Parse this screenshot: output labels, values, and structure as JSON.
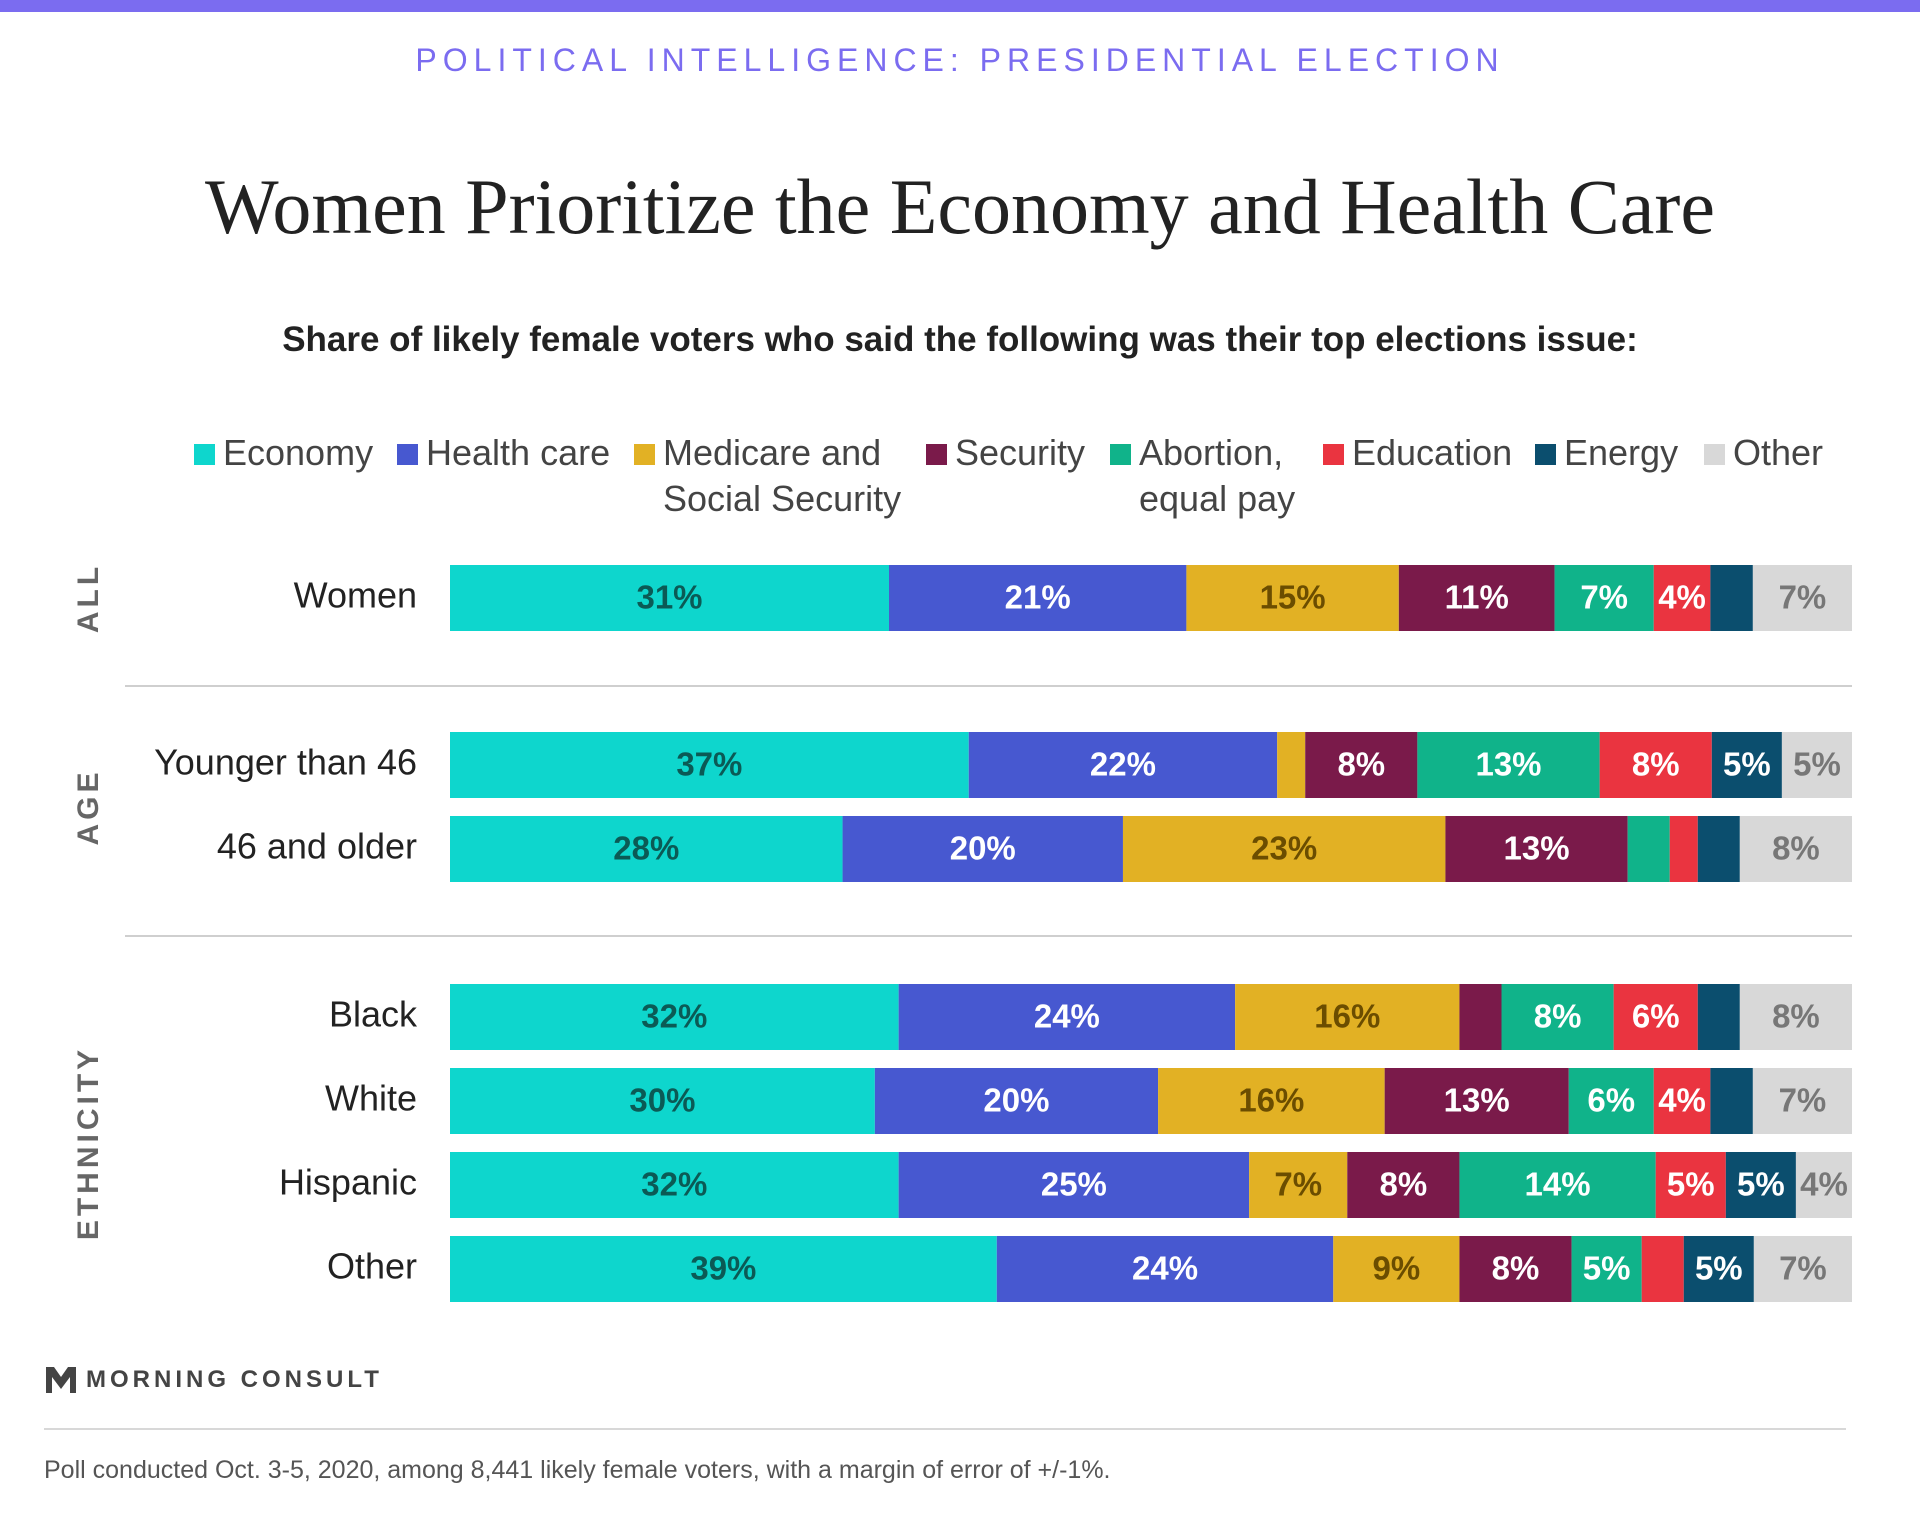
{
  "header": {
    "kicker": "POLITICAL INTELLIGENCE: PRESIDENTIAL ELECTION",
    "title": "Women Prioritize the Economy and Health Care",
    "subtitle": "Share of likely female voters who said the following was their top elections issue:"
  },
  "legend": [
    {
      "label": "Economy",
      "color": "#0ed6cd"
    },
    {
      "label": "Health care",
      "color": "#4758d0"
    },
    {
      "label": "Medicare and Social Security",
      "color": "#e2b124"
    },
    {
      "label": "Security",
      "color": "#7a1a4a"
    },
    {
      "label": "Abortion, equal pay",
      "color": "#10b38a"
    },
    {
      "label": "Education",
      "color": "#ea3440"
    },
    {
      "label": "Energy",
      "color": "#0b4e6e"
    },
    {
      "label": "Other",
      "color": "#d8d8d8"
    }
  ],
  "chart_data": {
    "type": "bar",
    "stacked": true,
    "orientation": "horizontal",
    "series_names": [
      "Economy",
      "Health care",
      "Medicare and Social Security",
      "Security",
      "Abortion, equal pay",
      "Education",
      "Energy",
      "Other"
    ],
    "groups": [
      {
        "name": "ALL",
        "rows": [
          {
            "label": "Women",
            "values": [
              31,
              21,
              15,
              11,
              7,
              4,
              3,
              7
            ],
            "labels": [
              "31%",
              "21%",
              "15%",
              "11%",
              "7%",
              "4%",
              "",
              "7%"
            ]
          }
        ]
      },
      {
        "name": "AGE",
        "rows": [
          {
            "label": "Younger than 46",
            "values": [
              37,
              22,
              2,
              8,
              13,
              8,
              5,
              5
            ],
            "labels": [
              "37%",
              "22%",
              "",
              "8%",
              "13%",
              "8%",
              "5%",
              "5%"
            ]
          },
          {
            "label": "46 and older",
            "values": [
              28,
              20,
              23,
              13,
              3,
              2,
              3,
              8
            ],
            "labels": [
              "28%",
              "20%",
              "23%",
              "13%",
              "",
              "",
              "",
              "8%"
            ]
          }
        ]
      },
      {
        "name": "ETHNICITY",
        "rows": [
          {
            "label": "Black",
            "values": [
              32,
              24,
              16,
              3,
              8,
              6,
              3,
              8
            ],
            "labels": [
              "32%",
              "24%",
              "16%",
              "",
              "8%",
              "6%",
              "",
              "8%"
            ]
          },
          {
            "label": "White",
            "values": [
              30,
              20,
              16,
              13,
              6,
              4,
              3,
              7
            ],
            "labels": [
              "30%",
              "20%",
              "16%",
              "13%",
              "6%",
              "4%",
              "",
              "7%"
            ]
          },
          {
            "label": "Hispanic",
            "values": [
              32,
              25,
              7,
              8,
              14,
              5,
              5,
              4
            ],
            "labels": [
              "32%",
              "25%",
              "7%",
              "8%",
              "14%",
              "5%",
              "5%",
              "4%"
            ]
          },
          {
            "label": "Other",
            "values": [
              39,
              24,
              9,
              8,
              5,
              3,
              5,
              7
            ],
            "labels": [
              "39%",
              "24%",
              "9%",
              "8%",
              "5%",
              "",
              "5%",
              "7%"
            ]
          }
        ]
      }
    ],
    "label_colors": [
      "#0b5a55",
      "#ffffff",
      "#6b4d00",
      "#ffffff",
      "#ffffff",
      "#ffffff",
      "#ffffff",
      "#777777"
    ]
  },
  "footer": {
    "brand": "MORNING CONSULT",
    "note": "Poll conducted Oct. 3-5, 2020, among 8,441 likely female voters, with a margin of error of +/-1%."
  }
}
